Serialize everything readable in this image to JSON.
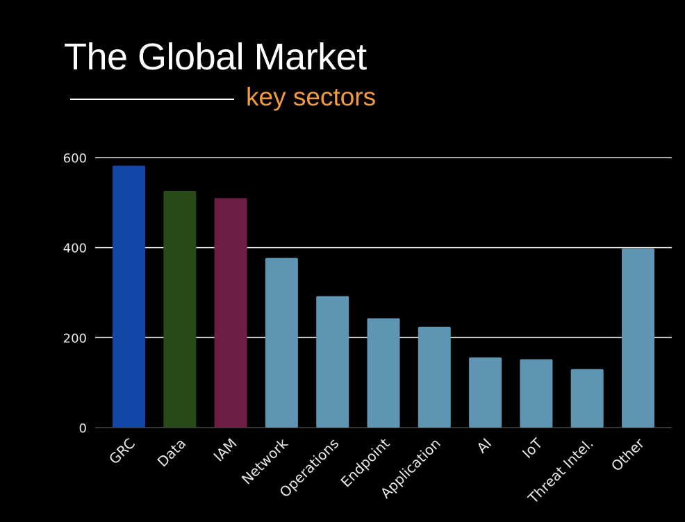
{
  "header": {
    "title": "The Global Market",
    "subtitle": "key sectors"
  },
  "chart_data": {
    "type": "bar",
    "title": "The Global Market",
    "subtitle": "key sectors",
    "categories": [
      "GRC",
      "Data",
      "IAM",
      "Network",
      "Operations",
      "Endpoint",
      "Application",
      "AI",
      "IoT",
      "Threat Intel.",
      "Other"
    ],
    "values": [
      582,
      526,
      510,
      377,
      292,
      243,
      224,
      156,
      152,
      130,
      398
    ],
    "colors": [
      "#1446a8",
      "#2a4a18",
      "#6e1d46",
      "#5e95b3",
      "#5e95b3",
      "#5e95b3",
      "#5e95b3",
      "#5e95b3",
      "#5e95b3",
      "#5e95b3",
      "#5e95b3"
    ],
    "yticks": [
      0,
      200,
      400,
      600
    ],
    "ylim": [
      0,
      600
    ],
    "xlabel": "",
    "ylabel": "",
    "grid": true
  }
}
